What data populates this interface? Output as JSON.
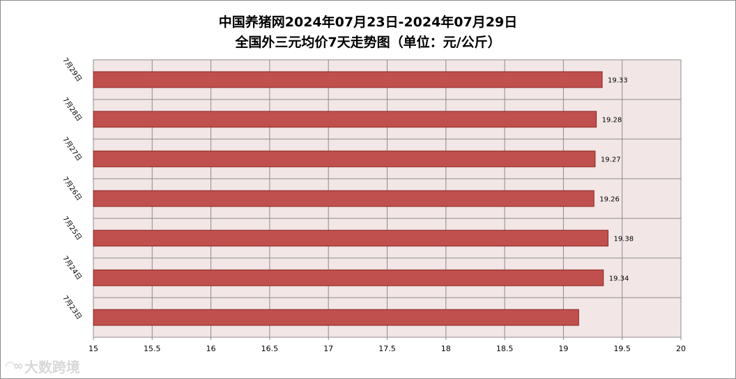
{
  "title_line1": "中国养猪网2024年07月23日-2024年07月29日",
  "title_line2": "全国外三元均价7天走势图（单位：元/公斤）",
  "watermark": "大数跨境",
  "chart_data": {
    "type": "bar",
    "orientation": "horizontal",
    "title": "中国养猪网2024年07月23日-2024年07月29日 全国外三元均价7天走势图（单位：元/公斤）",
    "categories": [
      "7月29日",
      "7月28日",
      "7月27日",
      "7月26日",
      "7月25日",
      "7月24日",
      "7月23日"
    ],
    "values": [
      19.33,
      19.28,
      19.27,
      19.26,
      19.38,
      19.34,
      19.13
    ],
    "data_labels": [
      "19.33",
      "19.28",
      "19.27",
      "19.26",
      "19.38",
      "19.34",
      ""
    ],
    "xlim": [
      15,
      20
    ],
    "x_ticks": [
      "15",
      "15.5",
      "16",
      "16.5",
      "17",
      "17.5",
      "18",
      "18.5",
      "19",
      "19.5",
      "20"
    ],
    "grid": true,
    "bar_color": "#c0504d",
    "bar_border_color": "#8b2423",
    "plot_background": "#f2e6e6",
    "legend": "none"
  }
}
